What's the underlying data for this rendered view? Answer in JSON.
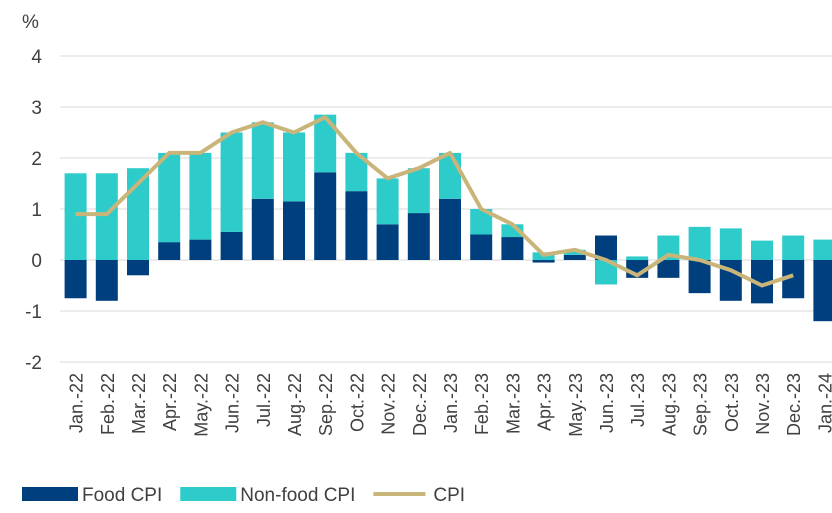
{
  "chart_data": {
    "type": "bar",
    "y_label": "%",
    "categories": [
      "Jan.-22",
      "Feb.-22",
      "Mar.-22",
      "Apr.-22",
      "May.-22",
      "Jun.-22",
      "Jul.-22",
      "Aug.-22",
      "Sep.-22",
      "Oct.-22",
      "Nov.-22",
      "Dec.-22",
      "Jan.-23",
      "Feb.-23",
      "Mar.-23",
      "Apr.-23",
      "May.-23",
      "Jun.-23",
      "Jul.-23",
      "Aug.-23",
      "Sep.-23",
      "Oct.-23",
      "Nov.-23",
      "Dec.-23",
      "Jan.-24"
    ],
    "series": [
      {
        "name": "Food CPI",
        "type": "bar",
        "color": "#003f7d",
        "values": [
          -0.75,
          -0.8,
          -0.3,
          0.35,
          0.4,
          0.55,
          1.2,
          1.15,
          1.72,
          1.35,
          0.7,
          0.92,
          1.2,
          0.5,
          0.45,
          -0.05,
          0.1,
          0.48,
          -0.35,
          -0.35,
          -0.65,
          -0.8,
          -0.85,
          -0.75,
          -1.2
        ]
      },
      {
        "name": "Non-food CPI",
        "type": "bar",
        "color": "#2ecbcb",
        "values": [
          1.7,
          1.7,
          1.8,
          1.75,
          1.7,
          1.95,
          1.5,
          1.35,
          1.13,
          0.75,
          0.9,
          0.88,
          0.9,
          0.5,
          0.25,
          0.15,
          0.1,
          -0.48,
          0.07,
          0.48,
          0.65,
          0.62,
          0.38,
          0.48,
          0.4
        ]
      },
      {
        "name": "CPI",
        "type": "line",
        "color": "#c9b57a",
        "values": [
          0.9,
          0.9,
          1.5,
          2.1,
          2.1,
          2.5,
          2.7,
          2.5,
          2.8,
          2.1,
          1.6,
          1.8,
          2.1,
          1.0,
          0.7,
          0.1,
          0.2,
          0.0,
          -0.3,
          0.1,
          0.0,
          -0.2,
          -0.5,
          -0.3,
          null
        ]
      }
    ],
    "ylim": [
      -2,
      4
    ],
    "yticks": [
      -2,
      -1,
      0,
      1,
      2,
      3,
      4
    ],
    "grid": true,
    "stacked": true,
    "legend": "bottom"
  }
}
